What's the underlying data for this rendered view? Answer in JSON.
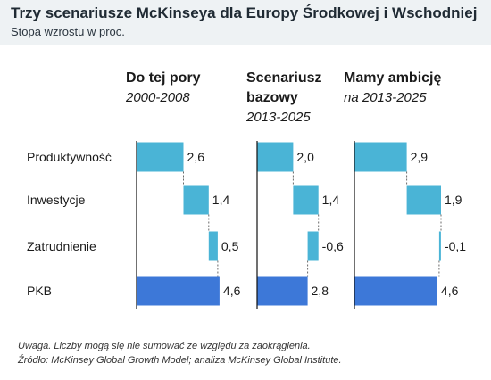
{
  "header": {
    "title": "Trzy scenariusze McKinseya dla Europy Środkowej i Wschodniej",
    "subtitle": "Stopa wzrostu w proc."
  },
  "footer": {
    "note": "Uwaga. Liczby mogą się nie sumować ze względu za zaokrąglenia.",
    "source": "Źródło: McKinsey Global Growth Model; analiza McKinsey Global Institute."
  },
  "colors": {
    "component": "#4ab4d6",
    "total": "#3d78d8",
    "header_bg": "#eef2f4"
  },
  "chart_data": {
    "type": "bar",
    "subtype": "waterfall",
    "title": "Trzy scenariusze McKinseya dla Europy Środkowej i Wschodniej",
    "subtitle": "Stopa wzrostu w proc.",
    "categories": [
      "Produktywność",
      "Inwestycje",
      "Zatrudnienie",
      "PKB"
    ],
    "panels": [
      {
        "heading": [
          "Do tej pory"
        ],
        "period": [
          "2000-2008"
        ],
        "values": [
          2.6,
          1.4,
          0.5,
          4.6
        ]
      },
      {
        "heading": [
          "Scenariusz",
          "bazowy"
        ],
        "period": [
          "2013-2025"
        ],
        "values": [
          2.0,
          1.4,
          -0.6,
          2.8
        ]
      },
      {
        "heading": [
          "Mamy ambicję"
        ],
        "period": [
          "na 2013-2025"
        ],
        "values": [
          2.9,
          1.9,
          -0.1,
          4.6
        ]
      }
    ],
    "labels": [
      [
        "2,6",
        "1,4",
        "0,5",
        "4,6"
      ],
      [
        "2,0",
        "1,4",
        "-0,6",
        "2,8"
      ],
      [
        "2,9",
        "1,9",
        "-0,1",
        "4,6"
      ]
    ],
    "grid": false,
    "legend": "none"
  }
}
